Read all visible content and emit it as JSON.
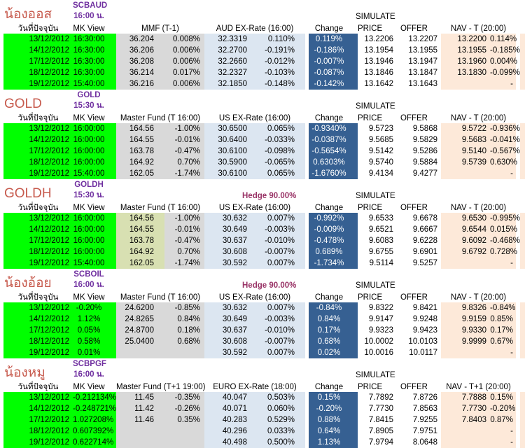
{
  "colors": {
    "green": "#00FF00",
    "grey": "#D9D9D9",
    "khaki": "#D8E0B2",
    "lightblue": "#DCE6F1",
    "darkblue": "#366092",
    "peach": "#FDE9D9",
    "red": "#C75B4E",
    "purple": "#7030A0",
    "hedge": "#993366"
  },
  "simulate_label": "SIMULATE",
  "sections": [
    {
      "title": "น้องออส",
      "code": "SCBAUD",
      "time": "16:00 น.",
      "hedge": "",
      "mf_khaki": false,
      "headers": {
        "date": "วันที่ปัจจุบัน",
        "mk": "MK View",
        "mf": "MMF (T-1)",
        "ex": "AUD EX-Rate (16:00)",
        "chg": "Change",
        "price": "PRICE",
        "offer": "OFFER",
        "nav": "NAV - T (20:00)"
      },
      "rows": [
        {
          "date": "13/12/2012",
          "mk": "16:30:00",
          "mfv": "36.204",
          "mfp": "0.008%",
          "exv": "32.3319",
          "exp": "0.110%",
          "chg": "0.119%",
          "price": "13.2206",
          "offer": "13.2207",
          "navv": "13.2200",
          "navp": "0.114%"
        },
        {
          "date": "14/12/2012",
          "mk": "16:30:00",
          "mfv": "36.206",
          "mfp": "0.006%",
          "exv": "32.2700",
          "exp": "-0.191%",
          "chg": "-0.186%",
          "price": "13.1954",
          "offer": "13.1955",
          "navv": "13.1955",
          "navp": "-0.185%"
        },
        {
          "date": "17/12/2012",
          "mk": "16:30:00",
          "mfv": "36.208",
          "mfp": "0.006%",
          "exv": "32.2660",
          "exp": "-0.012%",
          "chg": "-0.007%",
          "price": "13.1946",
          "offer": "13.1947",
          "navv": "13.1960",
          "navp": "0.004%"
        },
        {
          "date": "18/12/2012",
          "mk": "16:30:00",
          "mfv": "36.214",
          "mfp": "0.017%",
          "exv": "32.2327",
          "exp": "-0.103%",
          "chg": "-0.087%",
          "price": "13.1846",
          "offer": "13.1847",
          "navv": "13.1830",
          "navp": "-0.099%"
        },
        {
          "date": "19/12/2012",
          "mk": "15:40:00",
          "mfv": "36.216",
          "mfp": "0.006%",
          "exv": "32.1850",
          "exp": "-0.148%",
          "chg": "-0.142%",
          "price": "13.1642",
          "offer": "13.1643",
          "navv": "",
          "navp": "-"
        }
      ]
    },
    {
      "title": "GOLD",
      "code": "GOLD",
      "time": "15:30 น.",
      "hedge": "",
      "mf_khaki": false,
      "headers": {
        "date": "วันที่ปัจจุบัน",
        "mk": "MK View",
        "mf": "Master Fund (T 16:00)",
        "ex": "US EX-Rate (16:00)",
        "chg": "Change",
        "price": "PRICE",
        "offer": "OFFER",
        "nav": "NAV - T (20:00)"
      },
      "rows": [
        {
          "date": "13/12/2012",
          "mk": "16:00:00",
          "mfv": "164.56",
          "mfp": "-1.00%",
          "exv": "30.6500",
          "exp": "0.065%",
          "chg": "-0.9340%",
          "price": "9.5723",
          "offer": "9.5868",
          "navv": "9.5722",
          "navp": "-0.936%"
        },
        {
          "date": "14/12/2012",
          "mk": "16:00:00",
          "mfv": "164.55",
          "mfp": "-0.01%",
          "exv": "30.6400",
          "exp": "-0.033%",
          "chg": "-0.0387%",
          "price": "9.5685",
          "offer": "9.5829",
          "navv": "9.5683",
          "navp": "-0.041%"
        },
        {
          "date": "17/12/2012",
          "mk": "16:00:00",
          "mfv": "163.78",
          "mfp": "-0.47%",
          "exv": "30.6100",
          "exp": "-0.098%",
          "chg": "-0.5654%",
          "price": "9.5142",
          "offer": "9.5286",
          "navv": "9.5140",
          "navp": "-0.567%"
        },
        {
          "date": "18/12/2012",
          "mk": "16:00:00",
          "mfv": "164.92",
          "mfp": "0.70%",
          "exv": "30.5900",
          "exp": "-0.065%",
          "chg": "0.6303%",
          "price": "9.5740",
          "offer": "9.5884",
          "navv": "9.5739",
          "navp": "0.630%"
        },
        {
          "date": "19/12/2012",
          "mk": "15:40:00",
          "mfv": "162.05",
          "mfp": "-1.74%",
          "exv": "30.6100",
          "exp": "0.065%",
          "chg": "-1.6760%",
          "price": "9.4134",
          "offer": "9.4277",
          "navv": "",
          "navp": "-"
        }
      ]
    },
    {
      "title": "GOLDH",
      "code": "GOLDH",
      "time": "15:30 น.",
      "hedge": "Hedge  90.00%",
      "mf_khaki": true,
      "headers": {
        "date": "วันที่ปัจจุบัน",
        "mk": "MK View",
        "mf": "Master Fund (T 16:00)",
        "ex": "US EX-Rate (16:00)",
        "chg": "Change",
        "price": "PRICE",
        "offer": "OFFER",
        "nav": "NAV - T (20:00)"
      },
      "rows": [
        {
          "date": "13/12/2012",
          "mk": "16:00:00",
          "mfv": "164.56",
          "mfp": "-1.00%",
          "exv": "30.632",
          "exp": "0.007%",
          "chg": "-0.992%",
          "price": "9.6533",
          "offer": "9.6678",
          "navv": "9.6530",
          "navp": "-0.995%"
        },
        {
          "date": "14/12/2012",
          "mk": "16:00:00",
          "mfv": "164.55",
          "mfp": "-0.01%",
          "exv": "30.649",
          "exp": "-0.003%",
          "chg": "-0.009%",
          "price": "9.6521",
          "offer": "9.6667",
          "navv": "9.6544",
          "navp": "0.015%"
        },
        {
          "date": "17/12/2012",
          "mk": "16:00:00",
          "mfv": "163.78",
          "mfp": "-0.47%",
          "exv": "30.637",
          "exp": "-0.010%",
          "chg": "-0.478%",
          "price": "9.6083",
          "offer": "9.6228",
          "navv": "9.6092",
          "navp": "-0.468%"
        },
        {
          "date": "18/12/2012",
          "mk": "16:00:00",
          "mfv": "164.92",
          "mfp": "0.70%",
          "exv": "30.608",
          "exp": "-0.007%",
          "chg": "0.689%",
          "price": "9.6755",
          "offer": "9.6901",
          "navv": "9.6792",
          "navp": "0.728%"
        },
        {
          "date": "19/12/2012",
          "mk": "15:40:00",
          "mfv": "162.05",
          "mfp": "-1.74%",
          "exv": "30.592",
          "exp": "0.007%",
          "chg": "-1.734%",
          "price": "9.5114",
          "offer": "9.5257",
          "navv": "",
          "navp": "-"
        }
      ]
    },
    {
      "title": "น้องอ้อย",
      "code": "SCBOIL",
      "time": "16:00 น.",
      "hedge": "Hedge  90.00%",
      "mf_khaki": false,
      "headers": {
        "date": "วันที่ปัจจุบัน",
        "mk": "MK View",
        "mf": "Master Fund (T 16:00)",
        "ex": "US EX-Rate (16:00)",
        "chg": "Change",
        "price": "PRICE",
        "offer": "OFFER",
        "nav": "NAV - T (20:00)"
      },
      "rows": [
        {
          "date": "13/12/2012",
          "mk": "-0.20%",
          "mfv": "24.6200",
          "mfp": "-0.85%",
          "exv": "30.632",
          "exp": "0.007%",
          "chg": "-0.84%",
          "price": "9.8322",
          "offer": "9.8421",
          "navv": "9.8326",
          "navp": "-0.84%"
        },
        {
          "date": "14/12/2012",
          "mk": "1.12%",
          "mfv": "24.8265",
          "mfp": "0.84%",
          "exv": "30.649",
          "exp": "-0.003%",
          "chg": "0.84%",
          "price": "9.9147",
          "offer": "9.9248",
          "navv": "9.9159",
          "navp": "0.85%"
        },
        {
          "date": "17/12/2012",
          "mk": "0.05%",
          "mfv": "24.8700",
          "mfp": "0.18%",
          "exv": "30.637",
          "exp": "-0.010%",
          "chg": "0.17%",
          "price": "9.9323",
          "offer": "9.9423",
          "navv": "9.9330",
          "navp": "0.17%"
        },
        {
          "date": "18/12/2012",
          "mk": "0.58%",
          "mfv": "25.0400",
          "mfp": "0.68%",
          "exv": "30.608",
          "exp": "-0.007%",
          "chg": "0.68%",
          "price": "10.0002",
          "offer": "10.0103",
          "navv": "9.9999",
          "navp": "0.67%"
        },
        {
          "date": "19/12/2012",
          "mk": "0.01%",
          "mfv": "",
          "mfp": "",
          "exv": "30.592",
          "exp": "0.007%",
          "chg": "0.02%",
          "price": "10.0016",
          "offer": "10.0117",
          "navv": "",
          "navp": "-"
        }
      ]
    },
    {
      "title": "น้องหมู",
      "code": "SCBPGF",
      "time": "16:00 น.",
      "hedge": "",
      "mf_khaki": false,
      "headers": {
        "date": "วันที่ปัจจุบัน",
        "mk": "MK View",
        "mf": "Master Fund (T+1 19:00)",
        "ex": "EURO EX-Rate (18:00)",
        "chg": "Change",
        "price": "PRICE",
        "offer": "OFFER",
        "nav": "NAV - T+1 (20:00)"
      },
      "rows": [
        {
          "date": "13/12/2012",
          "mk": "-0.212134%",
          "mfv": "11.45",
          "mfp": "-0.35%",
          "exv": "40.047",
          "exp": "0.503%",
          "chg": "0.15%",
          "price": "7.7892",
          "offer": "7.8726",
          "navv": "7.7888",
          "navp": "0.15%"
        },
        {
          "date": "14/12/2012",
          "mk": "-0.248721%",
          "mfv": "11.42",
          "mfp": "-0.26%",
          "exv": "40.071",
          "exp": "0.060%",
          "chg": "-0.20%",
          "price": "7.7730",
          "offer": "7.8563",
          "navv": "7.7730",
          "navp": "-0.20%"
        },
        {
          "date": "17/12/2012",
          "mk": "1.027208%",
          "mfv": "11.46",
          "mfp": "0.35%",
          "exv": "40.283",
          "exp": "0.529%",
          "chg": "0.88%",
          "price": "7.8415",
          "offer": "7.9255",
          "navv": "7.8403",
          "navp": "0.87%"
        },
        {
          "date": "18/12/2012",
          "mk": "0.607392%",
          "mfv": "",
          "mfp": "",
          "exv": "40.296",
          "exp": "0.033%",
          "chg": "0.64%",
          "price": "7.8905",
          "offer": "7.9751",
          "navv": "",
          "navp": "-"
        },
        {
          "date": "19/12/2012",
          "mk": "0.622714%",
          "mfv": "",
          "mfp": "",
          "exv": "40.498",
          "exp": "0.500%",
          "chg": "1.13%",
          "price": "7.9794",
          "offer": "8.0648",
          "navv": "",
          "navp": "-"
        }
      ]
    }
  ]
}
